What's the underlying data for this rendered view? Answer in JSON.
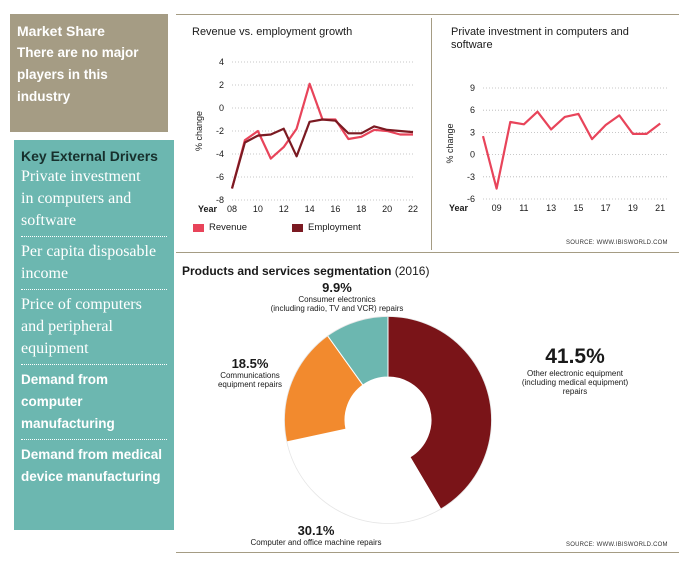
{
  "sidebar": {
    "market_share_title": "Market Share",
    "market_share_lines": [
      "There are no major",
      "players in this",
      "industry"
    ],
    "key_drivers_title": "Key External Drivers",
    "drivers": [
      {
        "lines": [
          "Private investment",
          "in computers and",
          "software"
        ],
        "style": "serif"
      },
      {
        "lines": [
          "Per capita disposable",
          "income"
        ],
        "style": "serif"
      },
      {
        "lines": [
          "Price of computers",
          "and peripheral",
          "equipment"
        ],
        "style": "serif"
      },
      {
        "lines": [
          "Demand from",
          "computer",
          "manufacturing"
        ],
        "style": "sans"
      },
      {
        "lines": [
          "Demand from medical",
          "device manufacturing"
        ],
        "style": "sans"
      }
    ]
  },
  "colors": {
    "revenue": "#e8445a",
    "employment": "#7b1a22",
    "teal": "#6cb7b0",
    "tan": "#a59c84",
    "orange": "#f28a2e",
    "maroon": "#7a1418",
    "white_slice": "#ffffff"
  },
  "chart_data": [
    {
      "id": "growth",
      "type": "line",
      "title": "Revenue vs. employment growth",
      "ylabel": "% change",
      "xlabel": "Year",
      "ylim": [
        -8,
        4
      ],
      "yticks": [
        4,
        2,
        0,
        -2,
        -4,
        -6,
        -8
      ],
      "xticks": [
        8,
        10,
        12,
        14,
        16,
        18,
        20,
        22
      ],
      "xtick_labels": [
        "08",
        "10",
        "12",
        "14",
        "16",
        "18",
        "20",
        "22"
      ],
      "x": [
        8,
        9,
        10,
        11,
        12,
        13,
        14,
        15,
        16,
        17,
        18,
        19,
        20,
        21,
        22
      ],
      "series": [
        {
          "name": "Revenue",
          "values": [
            -7.0,
            -2.8,
            -2.0,
            -4.4,
            -3.4,
            -1.8,
            2.1,
            -1.0,
            -1.0,
            -2.7,
            -2.5,
            -1.9,
            -2.0,
            -2.3,
            -2.3
          ]
        },
        {
          "name": "Employment",
          "values": [
            -7.0,
            -3.0,
            -2.4,
            -2.3,
            -1.8,
            -4.2,
            -1.2,
            -1.0,
            -1.1,
            -2.2,
            -2.2,
            -1.6,
            -1.9,
            -2.0,
            -2.1
          ]
        }
      ],
      "legend": [
        "Revenue",
        "Employment"
      ],
      "source": "SOURCE: WWW.IBISWORLD.COM"
    },
    {
      "id": "investment",
      "type": "line",
      "title": "Private investment in computers and software",
      "ylabel": "% change",
      "xlabel": "Year",
      "ylim": [
        -6,
        9
      ],
      "yticks": [
        9,
        6,
        3,
        0,
        -3,
        -6
      ],
      "xticks": [
        9,
        11,
        13,
        15,
        17,
        19,
        21
      ],
      "xtick_labels": [
        "09",
        "11",
        "13",
        "15",
        "17",
        "19",
        "21"
      ],
      "x": [
        8,
        9,
        10,
        11,
        12,
        13,
        14,
        15,
        16,
        17,
        18,
        19,
        20,
        21
      ],
      "series": [
        {
          "name": "Private investment",
          "values": [
            2.5,
            -4.6,
            4.4,
            4.1,
            5.8,
            3.4,
            5.1,
            5.5,
            2.1,
            4.0,
            5.3,
            2.8,
            2.8,
            4.2
          ]
        }
      ]
    },
    {
      "id": "segmentation",
      "type": "pie",
      "title": "Products and services segmentation",
      "subtitle": "(2016)",
      "slices": [
        {
          "label": "Other electronic equipment (including medical equipment) repairs",
          "pct_text": "41.5%",
          "value": 41.5,
          "lines": [
            "Other electronic equipment",
            "(including medical equipment)",
            "repairs"
          ]
        },
        {
          "label": "Computer and office machine repairs",
          "pct_text": "30.1%",
          "value": 30.1,
          "lines": [
            "Computer and office machine repairs"
          ]
        },
        {
          "label": "Communications equipment repairs",
          "pct_text": "18.5%",
          "value": 18.5,
          "lines": [
            "Communications",
            "equipment repairs"
          ]
        },
        {
          "label": "Consumer electronics (including radio, TV and VCR) repairs",
          "pct_text": "9.9%",
          "value": 9.9,
          "lines": [
            "Consumer electronics",
            "(including radio, TV and VCR) repairs"
          ]
        }
      ],
      "source": "SOURCE: WWW.IBISWORLD.COM"
    }
  ]
}
